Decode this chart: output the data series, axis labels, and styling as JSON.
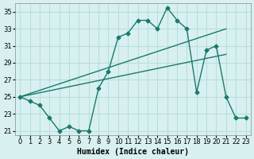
{
  "bg_color": "#d8f0f0",
  "grid_color": "#b8dede",
  "line_color": "#1a7a6a",
  "xlim": [
    -0.5,
    23.5
  ],
  "ylim": [
    20.5,
    36
  ],
  "xticks": [
    0,
    1,
    2,
    3,
    4,
    5,
    6,
    7,
    8,
    9,
    10,
    11,
    12,
    13,
    14,
    15,
    16,
    17,
    18,
    19,
    20,
    21,
    22,
    23
  ],
  "yticks": [
    21,
    23,
    25,
    27,
    29,
    31,
    33,
    35
  ],
  "line1_x": [
    0,
    1,
    2,
    3,
    4,
    5,
    6,
    7,
    8,
    9,
    10,
    11,
    12,
    13,
    14,
    15,
    16,
    17,
    18,
    19,
    20,
    21,
    22,
    23
  ],
  "line1_y": [
    25,
    24.5,
    24,
    22.5,
    21,
    21.5,
    21,
    21,
    26,
    28,
    32,
    32.5,
    34,
    34,
    33,
    35.5,
    34,
    33,
    25.5,
    30.5,
    31,
    25,
    22.5,
    22.5
  ],
  "line2_x": [
    0,
    21
  ],
  "line2_y": [
    25,
    33
  ],
  "line3_x": [
    0,
    21
  ],
  "line3_y": [
    25,
    30
  ],
  "xlabel": "Humidex (Indice chaleur)",
  "figsize": [
    3.2,
    2.0
  ],
  "dpi": 100,
  "tick_fontsize": 6,
  "label_fontsize": 7
}
